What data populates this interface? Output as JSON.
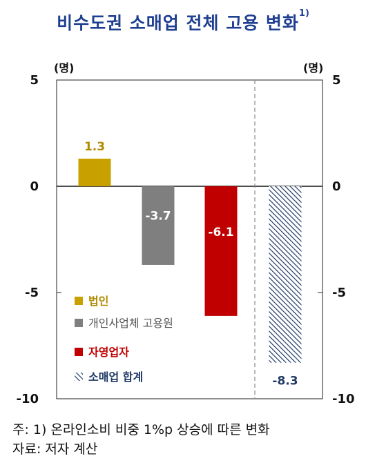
{
  "title": "비수도권 소매업 전체 고용 변화",
  "title_sup": "1)",
  "notes": [
    "주: 1) 온라인소비 비중 1%p 상승에 따른 변화",
    "자료: 저자 계산"
  ],
  "colors": {
    "title": "#1f3f91",
    "corporation": "#c8a000",
    "individual": "#7f7f7f",
    "self_employed": "#c00000",
    "total": "#1f3864"
  },
  "chart_data": {
    "type": "bar",
    "title": "비수도권 소매업 전체 고용 변화",
    "y_unit_left": "(명)",
    "y_unit_right": "(명)",
    "ylim": [
      -10,
      5
    ],
    "yticks": [
      5,
      0,
      -5,
      -10
    ],
    "grid": false,
    "legend_position": "bottom-left",
    "separator_before_last": true,
    "categories": [
      "법인",
      "개인사업체 고용원",
      "자영업자",
      "소매업 합계"
    ],
    "values": [
      1.3,
      -3.7,
      -6.1,
      -8.3
    ],
    "value_labels": [
      "1.3",
      "-3.7",
      "-6.1",
      "-8.3"
    ],
    "legend": [
      {
        "label": "법인",
        "marker": "square",
        "color": "#c8a000"
      },
      {
        "label": "개인사업체 고용원",
        "marker": "square",
        "color": "#7f7f7f"
      },
      {
        "label": "자영업자",
        "marker": "square",
        "color": "#c00000"
      },
      {
        "label": "소매업 합계",
        "marker": "hatched",
        "color": "#1f3864"
      }
    ]
  }
}
